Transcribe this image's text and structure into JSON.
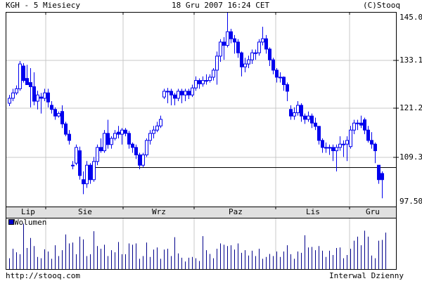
{
  "header": {
    "left": "KGH - 5 Miesiecy",
    "center": "18 Gru 2007 16:24 CET",
    "right": "(C)Stooq"
  },
  "footer": {
    "left": "http://stooq.com",
    "right": "Interwal Dzienny"
  },
  "colors": {
    "candle": "#0000ee",
    "volume": "#00008b",
    "grid": "#c8c8c8",
    "month_bar": "#e0e0e0"
  },
  "chart_data": [
    {
      "type": "candlestick",
      "title": "KGH - 5 Miesiecy",
      "x_ticks": [
        "Lip",
        "Sie",
        "Wrz",
        "Paz",
        "Lis",
        "Gru"
      ],
      "y_ticks": [
        "145.0",
        "133.1",
        "121.2",
        "109.3",
        "97.50"
      ],
      "ylim": [
        97.5,
        145.0
      ],
      "grid": true,
      "reference_line": 107.0,
      "candles": [
        [
          122.5,
          124.5,
          121.8,
          123.7
        ],
        [
          123.7,
          126.0,
          123.0,
          125.0
        ],
        [
          125.0,
          126.8,
          124.5,
          126.0
        ],
        [
          126.0,
          132.7,
          125.5,
          132.0
        ],
        [
          131.5,
          132.2,
          127.5,
          128.0
        ],
        [
          128.5,
          131.8,
          127.0,
          127.0
        ],
        [
          127.5,
          131.0,
          121.5,
          126.5
        ],
        [
          126.5,
          130.0,
          122.0,
          123.0
        ],
        [
          123.0,
          125.5,
          121.0,
          124.5
        ],
        [
          124.0,
          125.0,
          120.0,
          123.7
        ],
        [
          123.7,
          126.0,
          123.0,
          125.0
        ],
        [
          125.0,
          126.0,
          121.5,
          122.8
        ],
        [
          122.0,
          123.0,
          120.0,
          121.0
        ],
        [
          121.0,
          121.5,
          118.5,
          119.4
        ],
        [
          119.4,
          120.5,
          119.0,
          120.0
        ],
        [
          120.5,
          122.0,
          116.5,
          117.5
        ],
        [
          117.5,
          118.0,
          114.5,
          115.0
        ],
        [
          115.0,
          116.0,
          112.5,
          113.5
        ],
        [
          107.5,
          108.5,
          106.5,
          107.5
        ],
        [
          108.0,
          112.5,
          107.5,
          111.8
        ],
        [
          111.0,
          112.0,
          104.0,
          105.0
        ],
        [
          104.0,
          106.0,
          100.5,
          103.0
        ],
        [
          103.0,
          108.5,
          102.0,
          107.5
        ],
        [
          107.5,
          108.0,
          103.0,
          104.0
        ],
        [
          104.0,
          109.5,
          103.5,
          108.4
        ],
        [
          108.4,
          112.5,
          107.5,
          111.8
        ],
        [
          111.8,
          114.0,
          110.5,
          111.0
        ],
        [
          111.0,
          116.0,
          110.5,
          115.2
        ],
        [
          115.2,
          118.5,
          111.5,
          112.5
        ],
        [
          112.5,
          114.5,
          111.5,
          114.0
        ],
        [
          114.0,
          116.0,
          113.5,
          115.2
        ],
        [
          115.5,
          117.0,
          114.0,
          115.0
        ],
        [
          115.0,
          116.5,
          112.5,
          116.0
        ],
        [
          116.0,
          116.5,
          114.5,
          115.2
        ],
        [
          115.2,
          115.8,
          111.5,
          112.6
        ],
        [
          112.6,
          113.0,
          110.5,
          111.8
        ],
        [
          111.8,
          112.5,
          109.0,
          110.0
        ],
        [
          110.0,
          110.5,
          106.5,
          107.5
        ],
        [
          107.5,
          110.5,
          107.0,
          110.0
        ],
        [
          110.0,
          114.0,
          109.5,
          113.5
        ],
        [
          113.5,
          116.0,
          112.5,
          115.2
        ],
        [
          115.2,
          117.0,
          114.0,
          116.0
        ],
        [
          116.0,
          118.0,
          115.5,
          117.0
        ],
        [
          117.0,
          119.5,
          116.5,
          118.6
        ],
        [
          124.0,
          126.0,
          123.5,
          125.4
        ],
        [
          125.4,
          126.2,
          122.5,
          125.4
        ],
        [
          125.4,
          126.0,
          122.0,
          124.5
        ],
        [
          124.5,
          125.0,
          122.0,
          123.7
        ],
        [
          123.7,
          126.0,
          123.0,
          125.4
        ],
        [
          125.4,
          126.0,
          122.5,
          124.5
        ],
        [
          124.5,
          126.0,
          123.0,
          125.4
        ],
        [
          125.4,
          126.0,
          123.5,
          124.5
        ],
        [
          124.5,
          127.0,
          124.0,
          126.2
        ],
        [
          126.2,
          129.0,
          125.5,
          128.0
        ],
        [
          128.0,
          128.5,
          126.0,
          127.2
        ],
        [
          127.2,
          129.0,
          126.5,
          128.0
        ],
        [
          128.0,
          129.5,
          127.0,
          128.0
        ],
        [
          128.0,
          129.5,
          127.5,
          128.8
        ],
        [
          128.8,
          131.0,
          128.0,
          130.5
        ],
        [
          130.5,
          135.0,
          127.0,
          133.9
        ],
        [
          133.9,
          138.0,
          132.5,
          137.3
        ],
        [
          137.3,
          138.5,
          133.0,
          136.5
        ],
        [
          136.5,
          145.0,
          136.0,
          139.8
        ],
        [
          139.8,
          140.5,
          137.0,
          138.1
        ],
        [
          138.1,
          139.0,
          134.5,
          137.3
        ],
        [
          137.3,
          138.0,
          133.5,
          134.7
        ],
        [
          134.7,
          135.0,
          129.0,
          131.3
        ],
        [
          131.3,
          133.5,
          130.0,
          132.0
        ],
        [
          132.0,
          134.0,
          131.0,
          133.0
        ],
        [
          133.0,
          135.5,
          132.0,
          134.7
        ],
        [
          134.7,
          135.5,
          133.0,
          134.7
        ],
        [
          134.7,
          138.0,
          134.0,
          137.3
        ],
        [
          137.3,
          141.0,
          136.5,
          138.1
        ],
        [
          138.1,
          139.0,
          134.5,
          135.6
        ],
        [
          135.6,
          136.0,
          131.5,
          133.0
        ],
        [
          133.0,
          133.5,
          129.5,
          130.5
        ],
        [
          130.5,
          131.0,
          127.5,
          128.8
        ],
        [
          128.8,
          130.0,
          127.5,
          128.8
        ],
        [
          128.8,
          129.0,
          125.5,
          127.0
        ],
        [
          127.0,
          127.5,
          123.0,
          125.4
        ],
        [
          121.0,
          122.0,
          118.5,
          119.4
        ],
        [
          119.4,
          121.5,
          118.5,
          120.2
        ],
        [
          120.2,
          123.0,
          119.5,
          122.0
        ],
        [
          122.0,
          122.5,
          118.0,
          119.4
        ],
        [
          119.4,
          120.0,
          117.5,
          118.6
        ],
        [
          118.6,
          120.5,
          118.0,
          119.4
        ],
        [
          119.4,
          120.0,
          116.5,
          117.7
        ],
        [
          117.7,
          119.0,
          116.0,
          116.9
        ],
        [
          116.9,
          117.0,
          112.5,
          113.5
        ],
        [
          113.5,
          114.0,
          110.5,
          111.8
        ],
        [
          111.8,
          113.0,
          110.5,
          111.8
        ],
        [
          111.8,
          112.5,
          110.0,
          111.8
        ],
        [
          111.8,
          112.5,
          108.5,
          111.0
        ],
        [
          111.0,
          112.5,
          106.0,
          111.8
        ],
        [
          111.8,
          114.5,
          111.0,
          112.6
        ],
        [
          112.6,
          113.5,
          109.5,
          112.6
        ],
        [
          112.6,
          114.5,
          108.5,
          113.5
        ],
        [
          112.0,
          117.0,
          111.5,
          116.0
        ],
        [
          116.0,
          118.5,
          115.0,
          117.7
        ],
        [
          117.7,
          118.5,
          116.0,
          117.7
        ],
        [
          117.7,
          119.5,
          116.5,
          117.2
        ],
        [
          118.5,
          119.0,
          115.0,
          116.0
        ],
        [
          116.0,
          117.0,
          113.0,
          113.5
        ],
        [
          113.5,
          115.5,
          111.5,
          112.6
        ],
        [
          112.6,
          113.0,
          108.0,
          111.0
        ],
        [
          107.5,
          107.5,
          103.0,
          104.0
        ],
        [
          105.5,
          106.0,
          99.5,
          104.0
        ]
      ],
      "volume": {
        "legend": "Wolumen",
        "values": [
          40,
          75,
          62,
          55,
          168,
          78,
          115,
          85,
          45,
          40,
          73,
          65,
          38,
          88,
          48,
          70,
          128,
          95,
          98,
          55,
          120,
          110,
          48,
          55,
          140,
          85,
          75,
          90,
          48,
          70,
          62,
          100,
          55,
          55,
          95,
          90,
          95,
          38,
          48,
          98,
          45,
          72,
          80,
          38,
          72,
          75,
          48,
          118,
          58,
          42,
          28,
          42,
          45,
          40,
          30,
          122,
          70,
          56,
          40,
          75,
          95,
          90,
          85,
          88,
          72,
          95,
          60,
          70,
          50,
          68,
          48,
          75,
          38,
          45,
          56,
          48,
          65,
          45,
          65,
          88,
          55,
          38,
          65,
          60,
          125,
          80,
          82,
          70,
          85,
          68,
          45,
          68,
          52,
          78,
          80,
          40,
          52,
          75,
          105,
          120,
          88,
          142,
          120,
          50,
          40,
          105,
          108,
          135
        ]
      }
    }
  ]
}
